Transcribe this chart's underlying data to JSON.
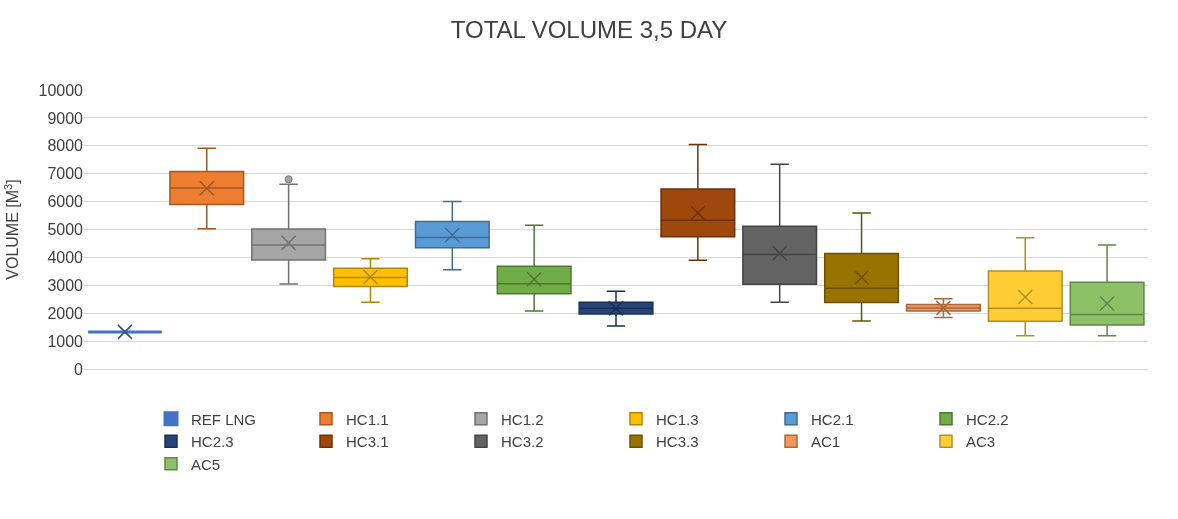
{
  "chart_data": {
    "type": "box",
    "title": "TOTAL VOLUME 3,5 DAY",
    "ylabel": "VOLUME [M$^{3}$]",
    "categories": [
      null,
      null,
      null,
      null,
      null,
      null,
      null,
      null,
      null,
      null,
      null,
      null,
      null
    ],
    "ylim": [
      0,
      10000
    ],
    "yticks": [
      0,
      1000,
      2000,
      3000,
      4000,
      5000,
      6000,
      7000,
      8000,
      9000,
      10000
    ],
    "grid": "y",
    "legend": "bottom",
    "marker": "cross",
    "series": [
      {
        "name": "REF LNG",
        "color": "#4472c4",
        "boxes": [
          {
            "low": 1330,
            "q1": 1330,
            "median": 1330,
            "q3": 1330,
            "high": 1330,
            "mean": 1330
          },
          null,
          null,
          null,
          null,
          null,
          null,
          null,
          null,
          null,
          null,
          null,
          null
        ]
      },
      {
        "name": "HC1.1",
        "color": "#ed7d31",
        "boxes": [
          null,
          {
            "low": 5030,
            "q1": 5900,
            "median": 6490,
            "q3": 7080,
            "high": 7910,
            "mean": 6480
          },
          null,
          null,
          null,
          null,
          null,
          null,
          null,
          null,
          null,
          null,
          null
        ]
      },
      {
        "name": "HC1.2",
        "color": "#a5a5a5",
        "boxes": [
          null,
          null,
          {
            "low": 3050,
            "q1": 3910,
            "median": 4440,
            "q3": 5020,
            "high": 6620,
            "mean": 4520,
            "outliers": [
              6800
            ]
          },
          null,
          null,
          null,
          null,
          null,
          null,
          null,
          null,
          null,
          null
        ]
      },
      {
        "name": "HC1.3",
        "color": "#ffc000",
        "boxes": [
          null,
          null,
          null,
          {
            "low": 2390,
            "q1": 2960,
            "median": 3280,
            "q3": 3610,
            "high": 3950,
            "mean": 3300
          },
          null,
          null,
          null,
          null,
          null,
          null,
          null,
          null,
          null
        ]
      },
      {
        "name": "HC2.1",
        "color": "#5b9bd5",
        "boxes": [
          null,
          null,
          null,
          null,
          {
            "low": 3560,
            "q1": 4350,
            "median": 4710,
            "q3": 5290,
            "high": 6000,
            "mean": 4800
          },
          null,
          null,
          null,
          null,
          null,
          null,
          null,
          null
        ]
      },
      {
        "name": "HC2.2",
        "color": "#70ad47",
        "boxes": [
          null,
          null,
          null,
          null,
          null,
          {
            "low": 2080,
            "q1": 2700,
            "median": 3060,
            "q3": 3680,
            "high": 5150,
            "mean": 3220
          },
          null,
          null,
          null,
          null,
          null,
          null,
          null
        ]
      },
      {
        "name": "HC2.3",
        "color": "#264478",
        "boxes": [
          null,
          null,
          null,
          null,
          null,
          null,
          {
            "low": 1540,
            "q1": 1970,
            "median": 2180,
            "q3": 2390,
            "high": 2790,
            "mean": 2180
          },
          null,
          null,
          null,
          null,
          null,
          null
        ]
      },
      {
        "name": "HC3.1",
        "color": "#9e480e",
        "boxes": [
          null,
          null,
          null,
          null,
          null,
          null,
          null,
          {
            "low": 3900,
            "q1": 4740,
            "median": 5330,
            "q3": 6450,
            "high": 8050,
            "mean": 5590
          },
          null,
          null,
          null,
          null,
          null
        ]
      },
      {
        "name": "HC3.2",
        "color": "#636363",
        "boxes": [
          null,
          null,
          null,
          null,
          null,
          null,
          null,
          null,
          {
            "low": 2390,
            "q1": 3040,
            "median": 4100,
            "q3": 5120,
            "high": 7340,
            "mean": 4150
          },
          null,
          null,
          null,
          null
        ]
      },
      {
        "name": "HC3.3",
        "color": "#997300",
        "boxes": [
          null,
          null,
          null,
          null,
          null,
          null,
          null,
          null,
          null,
          {
            "low": 1720,
            "q1": 2380,
            "median": 2890,
            "q3": 4140,
            "high": 5590,
            "mean": 3280
          },
          null,
          null,
          null
        ]
      },
      {
        "name": "AC1",
        "color": "#f1975a",
        "boxes": [
          null,
          null,
          null,
          null,
          null,
          null,
          null,
          null,
          null,
          null,
          {
            "low": 1850,
            "q1": 2080,
            "median": 2190,
            "q3": 2310,
            "high": 2520,
            "mean": 2190
          },
          null,
          null
        ]
      },
      {
        "name": "AC3",
        "color": "#ffcd33",
        "boxes": [
          null,
          null,
          null,
          null,
          null,
          null,
          null,
          null,
          null,
          null,
          null,
          {
            "low": 1190,
            "q1": 1710,
            "median": 2180,
            "q3": 3510,
            "high": 4700,
            "mean": 2580
          },
          null
        ]
      },
      {
        "name": "AC5",
        "color": "#8cc168",
        "boxes": [
          null,
          null,
          null,
          null,
          null,
          null,
          null,
          null,
          null,
          null,
          null,
          null,
          {
            "low": 1190,
            "q1": 1580,
            "median": 1950,
            "q3": 3110,
            "high": 4440,
            "mean": 2350
          }
        ]
      }
    ]
  }
}
